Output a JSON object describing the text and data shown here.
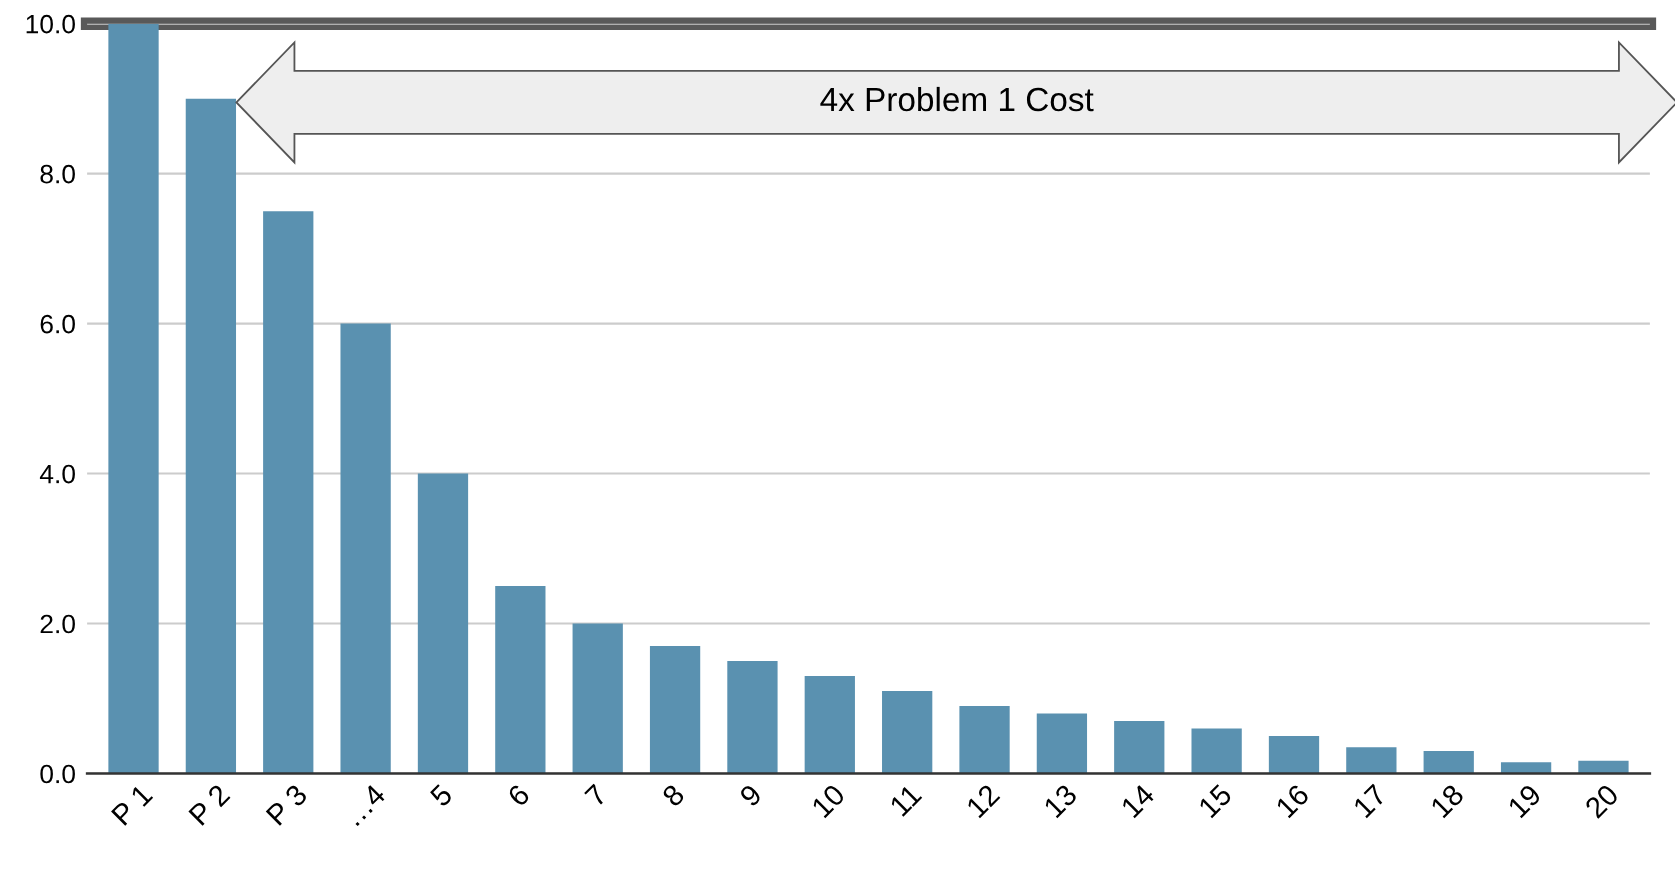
{
  "chart_data": {
    "type": "bar",
    "categories": [
      "P 1",
      "P 2",
      "P 3",
      "…4",
      "5",
      "6",
      "7",
      "8",
      "9",
      "10",
      "11",
      "12",
      "13",
      "14",
      "15",
      "16",
      "17",
      "18",
      "19",
      "20"
    ],
    "values": [
      10.0,
      9.0,
      7.5,
      6.0,
      4.0,
      2.5,
      2.0,
      1.7,
      1.5,
      1.3,
      1.1,
      0.9,
      0.8,
      0.7,
      0.6,
      0.5,
      0.35,
      0.3,
      0.15,
      0.17
    ],
    "color": "#5a91b0",
    "ylim": [
      0,
      10
    ],
    "yticks": [
      {
        "value": 0,
        "label": "0.0"
      },
      {
        "value": 2,
        "label": "2.0"
      },
      {
        "value": 4,
        "label": "4.0"
      },
      {
        "value": 6,
        "label": "6.0"
      },
      {
        "value": 8,
        "label": "8.0"
      },
      {
        "value": 10,
        "label": "10.0"
      }
    ],
    "grid": "y",
    "ref_lines": [
      {
        "axis": "y",
        "value": 10,
        "color": "#595959"
      }
    ],
    "annotations": [
      "4x Problem 1 Cost"
    ]
  }
}
